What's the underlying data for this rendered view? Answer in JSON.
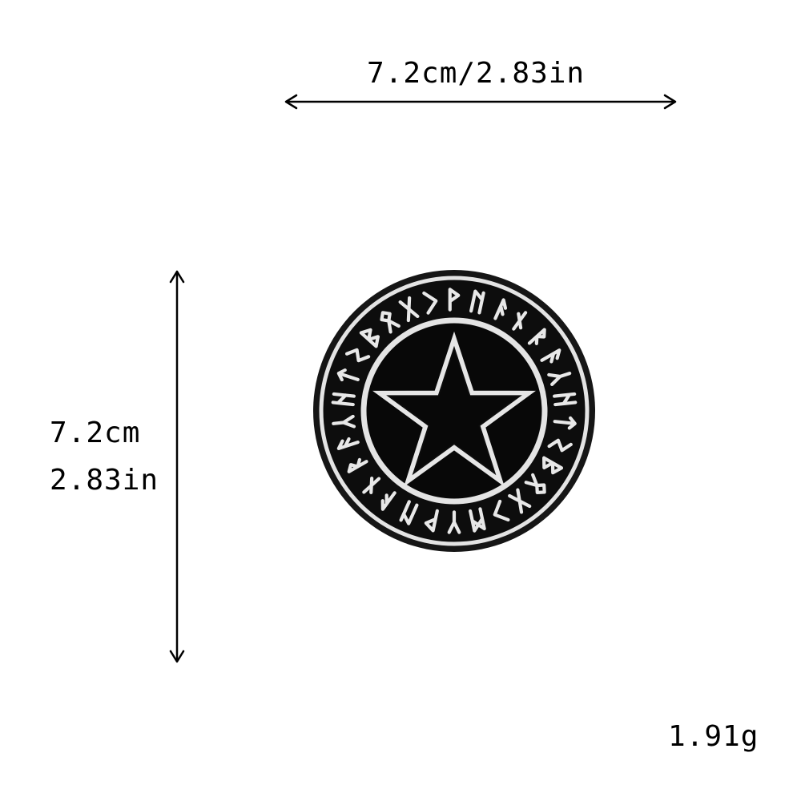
{
  "dimensions": {
    "width_label": "7.2cm/2.83in",
    "height_cm": "7.2cm",
    "height_in": "2.83in",
    "weight": "1.91g"
  },
  "product": {
    "type": "embroidered patch",
    "motif": "pentagram with runic ring",
    "colors": {
      "fabric": "#0d0d0d",
      "thread": "#e6e6e6",
      "edge": "#1a1a1a"
    }
  }
}
